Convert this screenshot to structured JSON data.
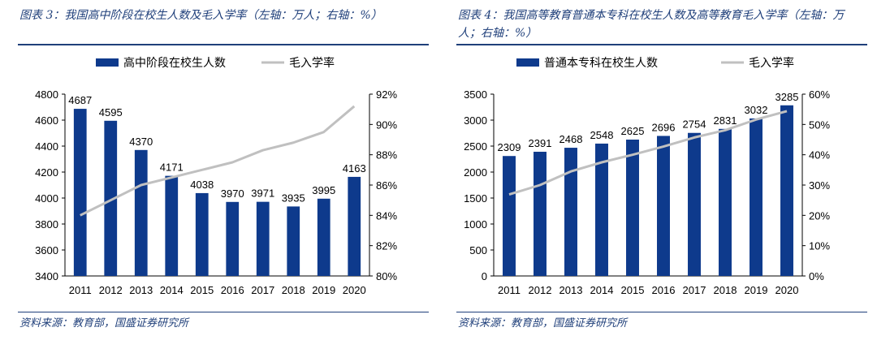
{
  "figures": [
    {
      "title": "图表 3：我国高中阶段在校生人数及毛入学率（左轴：万人；右轴：%）",
      "source": "资料来源：教育部，国盛证券研究所"
    },
    {
      "title": "图表 4：我国高等教育普通本专科在校生人数及高等教育毛入学率（左轴：万人；右轴：%）",
      "source": "资料来源：教育部，国盛证券研究所"
    }
  ],
  "chart_data": [
    {
      "type": "bar",
      "categories": [
        "2011",
        "2012",
        "2013",
        "2014",
        "2015",
        "2016",
        "2017",
        "2018",
        "2019",
        "2020"
      ],
      "series": [
        {
          "name": "高中阶段在校生人数",
          "type": "bar",
          "axis": "left",
          "values": [
            4687,
            4595,
            4370,
            4171,
            4038,
            3970,
            3971,
            3935,
            3995,
            4163
          ]
        },
        {
          "name": "毛入学率",
          "type": "line",
          "axis": "right",
          "values": [
            84.0,
            85.0,
            86.0,
            86.5,
            87.0,
            87.5,
            88.3,
            88.8,
            89.5,
            91.2
          ]
        }
      ],
      "ylim": [
        3400,
        4800
      ],
      "yticks": [
        3400,
        3600,
        3800,
        4000,
        4200,
        4400,
        4600,
        4800
      ],
      "y2lim": [
        80,
        92
      ],
      "y2ticks": [
        "80%",
        "82%",
        "84%",
        "86%",
        "88%",
        "90%",
        "92%"
      ],
      "grid": false,
      "legend": "top",
      "colors": {
        "bar": "#0e3a8c",
        "line": "#c0c0c0"
      }
    },
    {
      "type": "bar",
      "categories": [
        "2011",
        "2012",
        "2013",
        "2014",
        "2015",
        "2016",
        "2017",
        "2018",
        "2019",
        "2020"
      ],
      "series": [
        {
          "name": "普通本专科在校生人数",
          "type": "bar",
          "axis": "left",
          "values": [
            2309,
            2391,
            2468,
            2548,
            2625,
            2696,
            2754,
            2831,
            3032,
            3285
          ]
        },
        {
          "name": "毛入学率",
          "type": "line",
          "axis": "right",
          "values": [
            26.9,
            30.0,
            34.5,
            37.5,
            40.0,
            42.7,
            45.7,
            48.1,
            51.6,
            54.4
          ]
        }
      ],
      "ylim": [
        0,
        3500
      ],
      "yticks": [
        0,
        500,
        1000,
        1500,
        2000,
        2500,
        3000,
        3500
      ],
      "y2lim": [
        0,
        60
      ],
      "y2ticks": [
        "0%",
        "10%",
        "20%",
        "30%",
        "40%",
        "50%",
        "60%"
      ],
      "grid": false,
      "legend": "top",
      "colors": {
        "bar": "#0e3a8c",
        "line": "#c0c0c0"
      }
    }
  ]
}
